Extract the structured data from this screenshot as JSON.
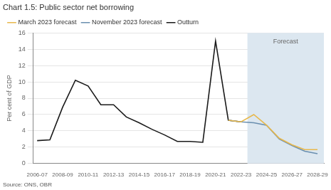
{
  "chart_data": {
    "type": "line",
    "title": "Chart 1.5: Public sector net borrowing",
    "ylabel": "Per cent of GDP",
    "source": "Source: ONS, OBR",
    "series": [
      {
        "name": "March 2023 forecast",
        "color": "#e8b84b",
        "x": [
          15,
          16,
          17,
          18,
          19,
          20,
          21,
          22
        ],
        "values": [
          5.3,
          5.1,
          6.0,
          4.7,
          3.1,
          2.3,
          1.7,
          1.7
        ]
      },
      {
        "name": "November 2023 forecast",
        "color": "#6a8faf",
        "x": [
          15,
          16,
          17,
          18,
          19,
          20,
          21,
          22
        ],
        "values": [
          5.3,
          5.1,
          5.0,
          4.7,
          3.0,
          2.2,
          1.5,
          1.2
        ]
      },
      {
        "name": "Outturn",
        "color": "#1a1a1a",
        "x": [
          0,
          1,
          2,
          3,
          4,
          5,
          6,
          7,
          8,
          9,
          10,
          11,
          12,
          13,
          14,
          15,
          16
        ],
        "values": [
          2.8,
          2.9,
          6.9,
          10.2,
          9.5,
          7.2,
          7.2,
          5.7,
          5.0,
          4.2,
          3.5,
          2.7,
          2.7,
          2.6,
          15.0,
          5.3,
          5.1
        ]
      }
    ],
    "shaded_region": {
      "from": 16.5,
      "to": 22.5,
      "color": "#dce7f0",
      "label": "Forecast",
      "label_x": 19.5,
      "label_y": 15.3
    },
    "xlim": [
      -0.3,
      22.5
    ],
    "xticks": [
      {
        "value": 0,
        "label": "2006-07"
      },
      {
        "value": 2,
        "label": "2008-09"
      },
      {
        "value": 4,
        "label": "2010-11"
      },
      {
        "value": 6,
        "label": "2012-13"
      },
      {
        "value": 8,
        "label": "2014-15"
      },
      {
        "value": 10,
        "label": "2016-17"
      },
      {
        "value": 12,
        "label": "2018-19"
      },
      {
        "value": 14,
        "label": "2020-21"
      },
      {
        "value": 16,
        "label": "2022-23"
      },
      {
        "value": 18,
        "label": "2024-25"
      },
      {
        "value": 20,
        "label": "2026-27"
      },
      {
        "value": 22,
        "label": "2028-29"
      }
    ],
    "ylim": [
      0,
      16
    ],
    "yticks": [
      0,
      2,
      4,
      6,
      8,
      10,
      12,
      14,
      16
    ],
    "grid": "y",
    "legend": "top"
  }
}
